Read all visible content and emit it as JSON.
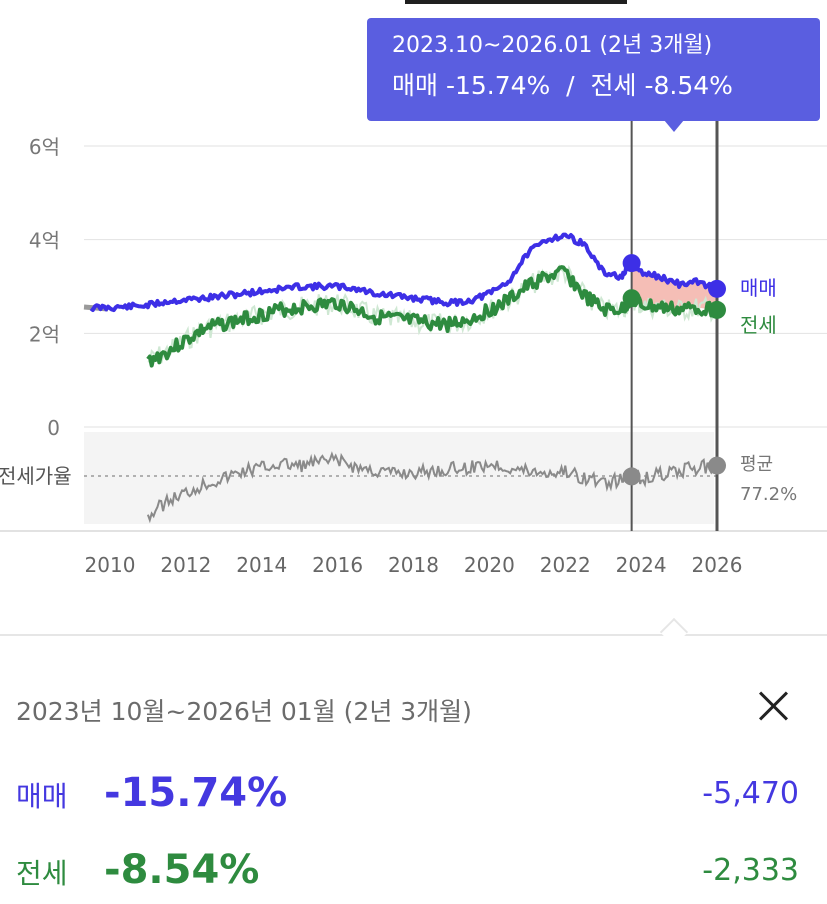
{
  "colors": {
    "buy": "#3d2fe6",
    "jeonse": "#2e8b3f",
    "ratio": "#8a8a8a",
    "tooltip_bg": "#5a5ee0",
    "highlight_fill": "#f3b3a9"
  },
  "tooltip": {
    "period": "2023.10~2026.01 (2년 3개월)",
    "change_line": "매매 -15.74%  /  전세 -8.54%"
  },
  "chart_data": {
    "type": "line",
    "x_ticks": [
      "2010",
      "2012",
      "2014",
      "2016",
      "2018",
      "2020",
      "2022",
      "2024",
      "2026"
    ],
    "y_ticks": [
      "6억",
      "4억",
      "2억",
      "0"
    ],
    "ylim": [
      0,
      6
    ],
    "y_unit": "억",
    "selected_range": [
      2023.75,
      2026.0
    ],
    "series": [
      {
        "name": "매매",
        "x": [
          2009.5,
          2010.0,
          2010.5,
          2011.0,
          2011.5,
          2012.0,
          2012.5,
          2013.0,
          2013.5,
          2014.0,
          2014.5,
          2015.0,
          2015.5,
          2016.0,
          2016.5,
          2017.0,
          2017.5,
          2018.0,
          2018.5,
          2019.0,
          2019.5,
          2020.0,
          2020.5,
          2021.0,
          2021.5,
          2022.0,
          2022.5,
          2023.0,
          2023.5,
          2023.75,
          2024.0,
          2024.5,
          2025.0,
          2025.5,
          2026.0
        ],
        "values": [
          2.55,
          2.55,
          2.57,
          2.6,
          2.68,
          2.72,
          2.75,
          2.8,
          2.85,
          2.9,
          2.95,
          3.0,
          3.0,
          3.0,
          2.95,
          2.85,
          2.8,
          2.75,
          2.7,
          2.65,
          2.7,
          2.85,
          3.1,
          3.7,
          4.0,
          4.1,
          3.9,
          3.3,
          3.2,
          3.5,
          3.3,
          3.2,
          3.05,
          3.1,
          2.95
        ]
      },
      {
        "name": "전세",
        "x": [
          2011.0,
          2011.5,
          2012.0,
          2012.5,
          2013.0,
          2013.5,
          2014.0,
          2014.5,
          2015.0,
          2015.5,
          2016.0,
          2016.5,
          2017.0,
          2017.5,
          2018.0,
          2018.5,
          2019.0,
          2019.5,
          2020.0,
          2020.5,
          2021.0,
          2021.5,
          2022.0,
          2022.5,
          2023.0,
          2023.5,
          2023.75,
          2024.0,
          2024.5,
          2025.0,
          2025.5,
          2026.0
        ],
        "values": [
          1.4,
          1.6,
          1.85,
          2.1,
          2.2,
          2.3,
          2.4,
          2.5,
          2.55,
          2.6,
          2.65,
          2.5,
          2.35,
          2.3,
          2.25,
          2.2,
          2.2,
          2.3,
          2.5,
          2.7,
          3.0,
          3.2,
          3.3,
          2.8,
          2.5,
          2.5,
          2.75,
          2.6,
          2.55,
          2.5,
          2.55,
          2.5
        ]
      },
      {
        "name": "전세가율",
        "x": [
          2011.0,
          2011.5,
          2012.0,
          2012.5,
          2013.0,
          2013.5,
          2014.0,
          2014.5,
          2015.0,
          2015.5,
          2016.0,
          2016.5,
          2017.0,
          2017.5,
          2018.0,
          2018.5,
          2019.0,
          2019.5,
          2020.0,
          2020.5,
          2021.0,
          2021.5,
          2022.0,
          2022.5,
          2023.0,
          2023.5,
          2023.75,
          2024.0,
          2024.5,
          2025.0,
          2025.5,
          2026.0
        ],
        "values": [
          55,
          63,
          68,
          73,
          76,
          80,
          82,
          84,
          83,
          85,
          86,
          82,
          80,
          79,
          79,
          80,
          81,
          82,
          84,
          82,
          80,
          79,
          80,
          76,
          74,
          75,
          77,
          76,
          78,
          80,
          82,
          83
        ]
      }
    ],
    "series_labels": [
      "매매",
      "전세"
    ],
    "ratio_label": "전세가율",
    "ratio_avg_label": "평균",
    "ratio_avg_value": "77.2%"
  },
  "panel": {
    "title": "2023년 10월~2026년 01월 (2년 3개월)",
    "rows": [
      {
        "label": "매매",
        "pct": "-15.74%",
        "diff": "-5,470"
      },
      {
        "label": "전세",
        "pct": "-8.54%",
        "diff": "-2,333"
      }
    ]
  }
}
